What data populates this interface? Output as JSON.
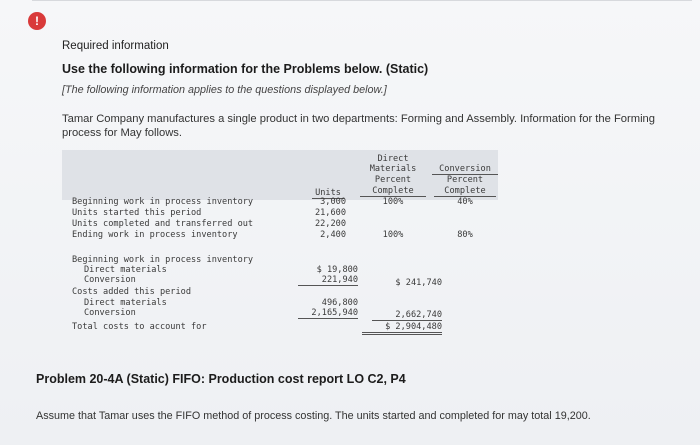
{
  "header": {
    "alert_glyph": "!",
    "required": "Required information",
    "use": "Use the following information for the Problems below. (Static)",
    "applies": "[The following information applies to the questions displayed below.]"
  },
  "description": "Tamar Company manufactures a single product in two departments: Forming and Assembly. Information for the Forming process for May follows.",
  "table": {
    "col_headers": {
      "units": "Units",
      "dm_line1": "Direct",
      "dm_line2": "Materials",
      "dm_line3": "Percent",
      "dm_line4": "Complete",
      "cv_line1": "Conversion",
      "cv_line2": "Percent",
      "cv_line3": "Complete"
    },
    "rows_units": [
      {
        "label": "Beginning work in process inventory",
        "units": "3,000",
        "dm": "100%",
        "cv": "40%"
      },
      {
        "label": "Units started this period",
        "units": "21,600",
        "dm": "",
        "cv": ""
      },
      {
        "label": "Units completed and transferred out",
        "units": "22,200",
        "dm": "",
        "cv": ""
      },
      {
        "label": "Ending work in process inventory",
        "units": "2,400",
        "dm": "100%",
        "cv": "80%"
      }
    ],
    "costs": {
      "bwip_label": "Beginning work in process inventory",
      "dm_label": "Direct materials",
      "dm_value": "$ 19,800",
      "conv_label": "Conversion",
      "conv_value": "221,940",
      "bwip_total": "$ 241,740",
      "added_label": "Costs added this period",
      "added_dm_label": "Direct materials",
      "added_dm_value": "496,800",
      "added_conv_label": "Conversion",
      "added_conv_value": "2,165,940",
      "added_total": "2,662,740",
      "total_label": "Total costs to account for",
      "total_value": "$ 2,904,480"
    }
  },
  "problem_title": "Problem 20-4A (Static) FIFO: Production cost report LO C2, P4",
  "assume": "Assume that Tamar uses the FIFO method of process costing. The units started and completed for may total 19,200.",
  "colors": {
    "alert": "#d93a3a",
    "band": "#dfe2e7"
  }
}
